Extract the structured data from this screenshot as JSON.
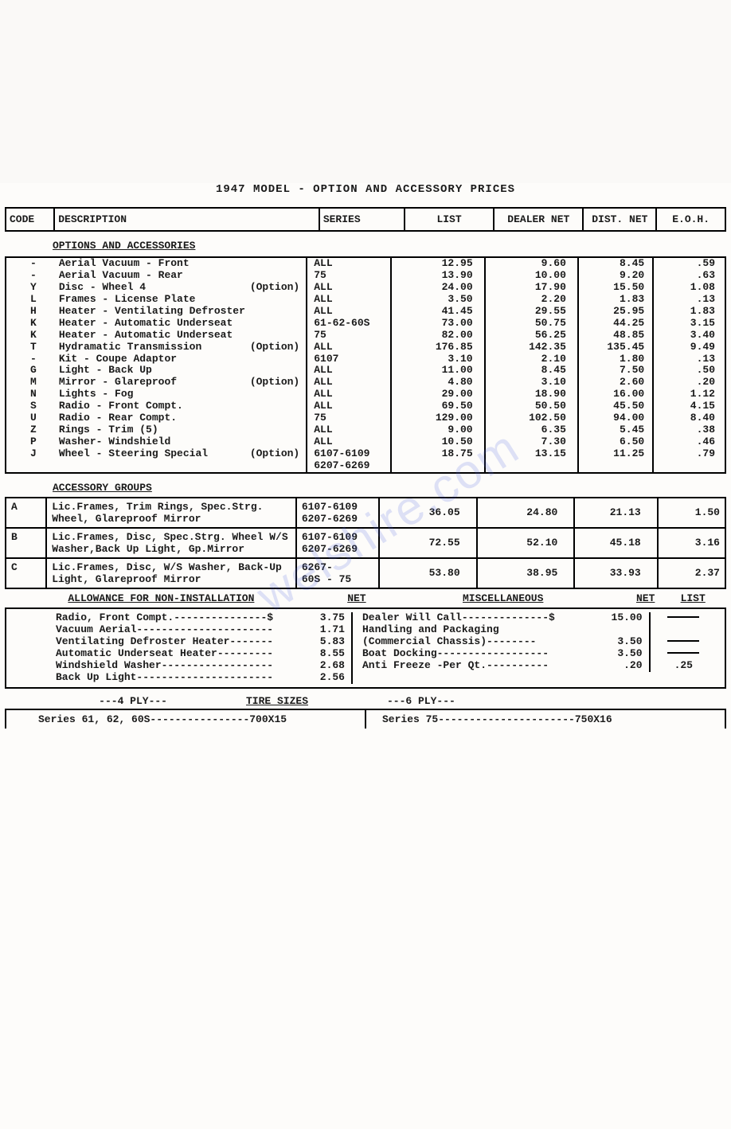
{
  "title": "1947 MODEL - OPTION AND ACCESSORY PRICES",
  "headers": {
    "code": "CODE",
    "description": "DESCRIPTION",
    "series": "SERIES",
    "list": "LIST",
    "dealer_net": "DEALER NET",
    "dist_net": "DIST. NET",
    "eoh": "E.O.H."
  },
  "sections": {
    "options": "OPTIONS AND ACCESSORIES",
    "groups": "ACCESSORY GROUPS",
    "allowance": "ALLOWANCE FOR NON-INSTALLATION",
    "misc": "MISCELLANEOUS",
    "net": "NET",
    "list": "LIST",
    "tires": "TIRE SIZES",
    "ply4": "---4 PLY---",
    "ply6": "---6 PLY---"
  },
  "options": [
    {
      "code": "-",
      "desc": "Aerial Vacuum - Front",
      "opt": "",
      "series": "ALL",
      "list": "12.95",
      "dealer": "9.60",
      "dist": "8.45",
      "eoh": ".59"
    },
    {
      "code": "-",
      "desc": "Aerial Vacuum - Rear",
      "opt": "",
      "series": "75",
      "list": "13.90",
      "dealer": "10.00",
      "dist": "9.20",
      "eoh": ".63"
    },
    {
      "code": "Y",
      "desc": "Disc - Wheel 4",
      "opt": "(Option)",
      "series": "ALL",
      "list": "24.00",
      "dealer": "17.90",
      "dist": "15.50",
      "eoh": "1.08"
    },
    {
      "code": "L",
      "desc": "Frames - License Plate",
      "opt": "",
      "series": "ALL",
      "list": "3.50",
      "dealer": "2.20",
      "dist": "1.83",
      "eoh": ".13"
    },
    {
      "code": "H",
      "desc": "Heater - Ventilating Defroster",
      "opt": "",
      "series": "ALL",
      "list": "41.45",
      "dealer": "29.55",
      "dist": "25.95",
      "eoh": "1.83"
    },
    {
      "code": "K",
      "desc": "Heater - Automatic Underseat",
      "opt": "",
      "series": "61-62-60S",
      "list": "73.00",
      "dealer": "50.75",
      "dist": "44.25",
      "eoh": "3.15"
    },
    {
      "code": "K",
      "desc": "Heater - Automatic Underseat",
      "opt": "",
      "series": "75",
      "list": "82.00",
      "dealer": "56.25",
      "dist": "48.85",
      "eoh": "3.40"
    },
    {
      "code": "T",
      "desc": "Hydramatic Transmission",
      "opt": "(Option)",
      "series": "ALL",
      "list": "176.85",
      "dealer": "142.35",
      "dist": "135.45",
      "eoh": "9.49"
    },
    {
      "code": "-",
      "desc": "Kit - Coupe Adaptor",
      "opt": "",
      "series": "6107",
      "list": "3.10",
      "dealer": "2.10",
      "dist": "1.80",
      "eoh": ".13"
    },
    {
      "code": "G",
      "desc": "Light - Back Up",
      "opt": "",
      "series": "ALL",
      "list": "11.00",
      "dealer": "8.45",
      "dist": "7.50",
      "eoh": ".50"
    },
    {
      "code": "M",
      "desc": "Mirror - Glareproof",
      "opt": "(Option)",
      "series": "ALL",
      "list": "4.80",
      "dealer": "3.10",
      "dist": "2.60",
      "eoh": ".20"
    },
    {
      "code": "N",
      "desc": "Lights - Fog",
      "opt": "",
      "series": "ALL",
      "list": "29.00",
      "dealer": "18.90",
      "dist": "16.00",
      "eoh": "1.12"
    },
    {
      "code": "S",
      "desc": "Radio - Front Compt.",
      "opt": "",
      "series": "ALL",
      "list": "69.50",
      "dealer": "50.50",
      "dist": "45.50",
      "eoh": "4.15"
    },
    {
      "code": "U",
      "desc": "Radio - Rear  Compt.",
      "opt": "",
      "series": "75",
      "list": "129.00",
      "dealer": "102.50",
      "dist": "94.00",
      "eoh": "8.40"
    },
    {
      "code": "Z",
      "desc": "Rings - Trim (5)",
      "opt": "",
      "series": "ALL",
      "list": "9.00",
      "dealer": "6.35",
      "dist": "5.45",
      "eoh": ".38"
    },
    {
      "code": "P",
      "desc": "Washer- Windshield",
      "opt": "",
      "series": "ALL",
      "list": "10.50",
      "dealer": "7.30",
      "dist": "6.50",
      "eoh": ".46"
    },
    {
      "code": "J",
      "desc": "Wheel - Steering Special",
      "opt": "(Option)",
      "series": "6107-6109 6207-6269",
      "list": "18.75",
      "dealer": "13.15",
      "dist": "11.25",
      "eoh": ".79"
    }
  ],
  "groups": [
    {
      "code": "A",
      "desc": "Lic.Frames, Trim Rings, Spec.Strg. Wheel, Glareproof Mirror",
      "series": "6107-6109 6207-6269",
      "list": "36.05",
      "dealer": "24.80",
      "dist": "21.13",
      "eoh": "1.50"
    },
    {
      "code": "B",
      "desc": "Lic.Frames, Disc, Spec.Strg. Wheel W/S Washer,Back Up Light, Gp.Mirror",
      "series": "6107-6109 6207-6269",
      "list": "72.55",
      "dealer": "52.10",
      "dist": "45.18",
      "eoh": "3.16"
    },
    {
      "code": "C",
      "desc": "Lic.Frames, Disc, W/S Washer, Back-Up Light, Glareproof Mirror",
      "series": "6267- 60S - 75",
      "list": "53.80",
      "dealer": "38.95",
      "dist": "33.93",
      "eoh": "2.37"
    }
  ],
  "allowance": [
    {
      "desc": "Radio, Front Compt.---------------$",
      "net": "3.75"
    },
    {
      "desc": "Vacuum Aerial----------------------",
      "net": "1.71"
    },
    {
      "desc": "Ventilating Defroster Heater-------",
      "net": "5.83"
    },
    {
      "desc": "Automatic Underseat Heater---------",
      "net": "8.55"
    },
    {
      "desc": "Windshield Washer------------------",
      "net": "2.68"
    },
    {
      "desc": "Back Up Light----------------------",
      "net": "2.56"
    }
  ],
  "misc": [
    {
      "desc": "Dealer Will Call--------------$",
      "net": "15.00",
      "list": "—"
    },
    {
      "desc": "Handling and Packaging",
      "net": "",
      "list": ""
    },
    {
      "desc": "  (Commercial Chassis)--------",
      "net": "3.50",
      "list": "—"
    },
    {
      "desc": "Boat Docking------------------",
      "net": "3.50",
      "list": "—"
    },
    {
      "desc": "Anti Freeze -Per Qt.----------",
      "net": ".20",
      "list": ".25"
    }
  ],
  "tires": {
    "left": "Series 61, 62, 60S----------------700X15",
    "right": "Series 75----------------------750X16"
  },
  "watermark": "welshire.com"
}
